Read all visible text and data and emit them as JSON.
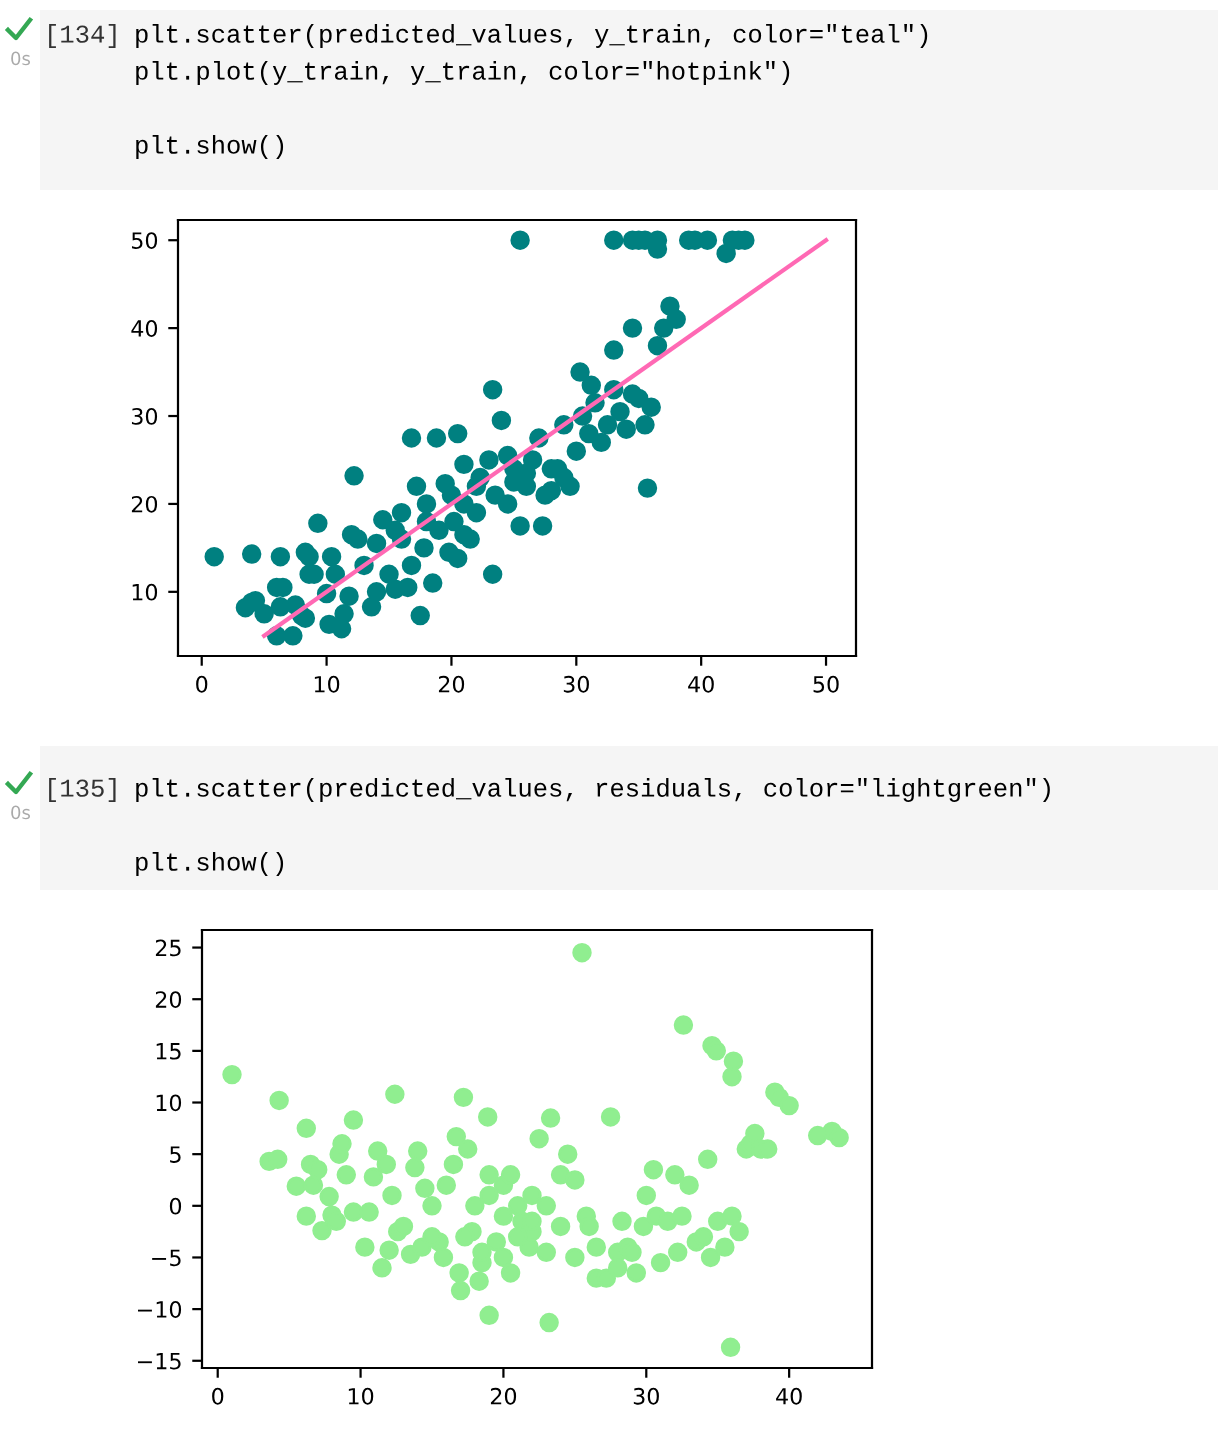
{
  "chart_data": [
    {
      "type": "scatter",
      "annotations": [
        "[134]",
        "plt.scatter(predicted_values, y_train, color=\"teal\")",
        "plt.plot(y_train, y_train, color=\"hotpink\")",
        "plt.show()",
        "0s"
      ],
      "xlim": [
        -1.9,
        52.4
      ],
      "ylim": [
        2.7,
        52.3
      ],
      "xticks": [
        0,
        10,
        20,
        30,
        40,
        50
      ],
      "yticks": [
        10,
        20,
        30,
        40,
        50
      ],
      "grid": false,
      "series": [
        {
          "marker": "circle",
          "color": "#008080",
          "x": [
            25.5,
            33,
            34.5,
            35,
            35.5,
            36.5,
            39,
            39.5,
            40.5,
            42.5,
            43,
            43.5,
            36.5,
            42,
            1,
            4,
            6.3,
            3.5,
            4,
            4.3,
            5,
            6,
            6.5,
            6.3,
            6,
            7.3,
            7.5,
            8,
            8.3,
            8.3,
            8.6,
            8.6,
            9,
            9.3,
            10,
            10.2,
            10.4,
            10.7,
            11.2,
            11.4,
            11.8,
            12,
            12.2,
            12.5,
            13,
            13.6,
            14,
            14,
            14.5,
            15,
            15.5,
            15.5,
            16,
            16.5,
            16.8,
            16.8,
            17.2,
            17.5,
            17.8,
            18,
            18.5,
            18.8,
            19,
            19.5,
            19.8,
            20.2,
            20.5,
            20.5,
            21,
            21,
            21.5,
            22,
            22.3,
            23,
            23.3,
            23.3,
            23.5,
            24,
            24.5,
            25,
            25.5,
            26,
            26.5,
            27,
            27.3,
            27.5,
            28,
            28.5,
            29,
            29.5,
            30,
            30.3,
            30.5,
            31,
            31.2,
            31.5,
            32,
            32.5,
            33,
            33,
            33.5,
            34,
            34.5,
            35,
            35.5,
            35.7,
            36,
            36.5,
            37,
            37.5,
            38,
            34.5,
            29,
            28,
            26,
            24.5,
            22,
            20,
            18,
            16,
            21,
            25
          ],
          "values": [
            50,
            50,
            50,
            50,
            50,
            50,
            50,
            50,
            50,
            50,
            50,
            50,
            49,
            48.5,
            14,
            14.3,
            14,
            8.2,
            8.8,
            9,
            7.5,
            10.5,
            10.5,
            8.3,
            5,
            5,
            8.5,
            7.3,
            7,
            14.5,
            14,
            12,
            12,
            17.8,
            9.8,
            6.3,
            14,
            12,
            5.8,
            7.5,
            9.5,
            16.5,
            23.2,
            16,
            13,
            8.3,
            10,
            15.5,
            18.2,
            12,
            10.3,
            17,
            19,
            10.5,
            27.5,
            13,
            22,
            7.3,
            15,
            20,
            11,
            27.5,
            17,
            22.3,
            14.5,
            18,
            13.8,
            28,
            24.5,
            20,
            16,
            19,
            23,
            25,
            33,
            12,
            21,
            29.5,
            20,
            24,
            17.5,
            22,
            25,
            27.5,
            17.5,
            21,
            24,
            24,
            29,
            22,
            26,
            35,
            30,
            28,
            33.5,
            31.5,
            27,
            29,
            33,
            37.5,
            30.5,
            28.5,
            40,
            32,
            29,
            21.8,
            31,
            38,
            40,
            42.5,
            41,
            32.5,
            23,
            21.5,
            23.5,
            25.5,
            22,
            21,
            18,
            16,
            16.5,
            22.5
          ]
        },
        {
          "type": "line",
          "marker": "none",
          "color": "#ff69b4",
          "x": [
            5,
            50
          ],
          "values": [
            5,
            50
          ]
        }
      ]
    },
    {
      "type": "scatter",
      "annotations": [
        "[135]",
        "plt.scatter(predicted_values, residuals, color=\"lightgreen\")",
        "plt.show()",
        "0s"
      ],
      "xlim": [
        -1.1,
        45.8
      ],
      "ylim": [
        -15.7,
        26.7
      ],
      "xticks": [
        0,
        10,
        20,
        30,
        40
      ],
      "yticks": [
        {
          "value": -15,
          "label": "−15"
        },
        {
          "value": -10,
          "label": "−10"
        },
        {
          "value": -5,
          "label": "−5"
        },
        0,
        5,
        10,
        15,
        20,
        25
      ],
      "grid": false,
      "series": [
        {
          "marker": "circle",
          "color": "#90ee90",
          "x": [
            1,
            4.3,
            3.6,
            4.2,
            5.5,
            6.2,
            6.2,
            6.5,
            6.7,
            7,
            7.3,
            7.8,
            8,
            8.3,
            8.5,
            8.7,
            9,
            9.5,
            9.5,
            10.3,
            10.6,
            10.9,
            11.2,
            11.5,
            11.8,
            12,
            12.2,
            12.4,
            12.6,
            13,
            13.5,
            13.8,
            14,
            14.3,
            14.5,
            15,
            15.5,
            15.8,
            16,
            16.5,
            16.7,
            16.9,
            17,
            17.2,
            17.5,
            17.8,
            18,
            18.3,
            18.5,
            18.9,
            19,
            19,
            19.5,
            20,
            20,
            20.5,
            21,
            21.3,
            21.8,
            22,
            22.5,
            23,
            23.2,
            23.3,
            24,
            24.5,
            25,
            25,
            25.5,
            25.8,
            26,
            26.5,
            27.2,
            27.5,
            28,
            28.3,
            28.7,
            29,
            29.3,
            29.8,
            30,
            30.5,
            30.7,
            31,
            31.5,
            32,
            32.2,
            32.5,
            32.6,
            33,
            33.5,
            34,
            34.3,
            34.5,
            34.6,
            34.9,
            35,
            35.5,
            35.9,
            36,
            36,
            36.1,
            36.5,
            37,
            37.3,
            37.6,
            38,
            39,
            39.3,
            40,
            42,
            43,
            43.5,
            38.5,
            24,
            22,
            21,
            20,
            19,
            23,
            26.5,
            28,
            22,
            20.5,
            15,
            17.3,
            18.5
          ],
          "values": [
            12.7,
            10.2,
            4.3,
            4.5,
            1.9,
            7.5,
            -1,
            4,
            2,
            3.5,
            -2.4,
            0.9,
            -0.9,
            -1.5,
            5,
            6,
            3,
            8.3,
            -0.6,
            -4,
            -0.6,
            2.8,
            5.3,
            -6,
            4,
            -4.3,
            1,
            10.8,
            -2.5,
            -2,
            -4.7,
            3.7,
            5.3,
            -4,
            1.7,
            0,
            -3.5,
            -5,
            2,
            4,
            6.7,
            -6.5,
            -8.2,
            10.5,
            5.5,
            -2.5,
            0,
            -7.3,
            -5.5,
            8.6,
            -10.6,
            3,
            -3.5,
            2,
            -5,
            -6.5,
            0,
            -1.5,
            -4,
            1,
            6.5,
            -4.5,
            -11.3,
            8.5,
            3,
            5,
            -5,
            2.5,
            24.5,
            -1,
            -2,
            -7,
            -7,
            8.6,
            -4.5,
            -1.5,
            -4,
            -4.5,
            -6.5,
            -2,
            1,
            3.5,
            -1,
            -5.5,
            -1.5,
            3,
            -4.5,
            -1,
            17.5,
            2,
            -3.5,
            -3,
            4.5,
            -5,
            15.5,
            15,
            -1.5,
            -4,
            -13.7,
            -1,
            12.5,
            14,
            -2.5,
            5.5,
            6,
            7,
            5.5,
            11,
            10.5,
            9.7,
            6.8,
            7.2,
            6.6,
            5.5,
            -2,
            -2.5,
            -3,
            -1,
            1,
            0,
            -4,
            -6,
            -1.5,
            3,
            -3,
            -3,
            -4.5
          ]
        }
      ]
    }
  ]
}
